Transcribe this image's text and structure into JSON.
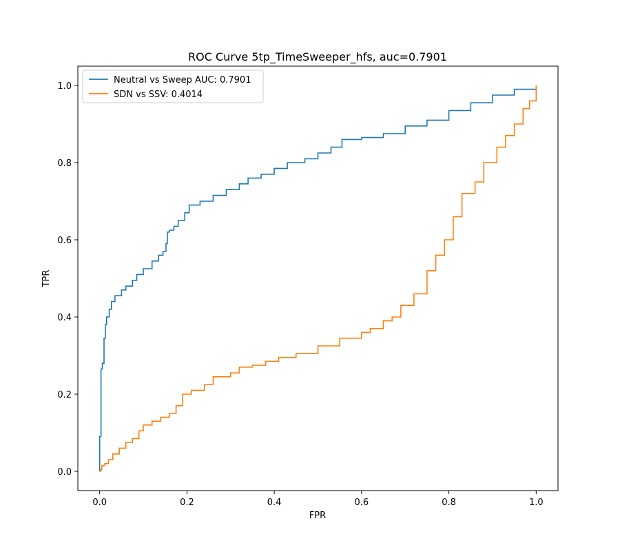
{
  "chart_data": {
    "type": "line",
    "title": "ROC Curve 5tp_TimeSweeper_hfs, auc=0.7901",
    "xlabel": "FPR",
    "ylabel": "TPR",
    "xlim": [
      -0.05,
      1.05
    ],
    "ylim": [
      -0.05,
      1.05
    ],
    "xticks": [
      0.0,
      0.2,
      0.4,
      0.6,
      0.8,
      1.0
    ],
    "yticks": [
      0.0,
      0.2,
      0.4,
      0.6,
      0.8,
      1.0
    ],
    "xtick_labels": [
      "0.0",
      "0.2",
      "0.4",
      "0.6",
      "0.8",
      "1.0"
    ],
    "ytick_labels": [
      "0.0",
      "0.2",
      "0.4",
      "0.6",
      "0.8",
      "1.0"
    ],
    "grid": false,
    "legend_position": "top-left",
    "series": [
      {
        "name": "Neutral vs Sweep AUC: 0.7901",
        "color": "#1f77b4",
        "points": [
          [
            0.0,
            0.0
          ],
          [
            0.0,
            0.09
          ],
          [
            0.003,
            0.09
          ],
          [
            0.003,
            0.265
          ],
          [
            0.006,
            0.28
          ],
          [
            0.01,
            0.345
          ],
          [
            0.013,
            0.38
          ],
          [
            0.016,
            0.4
          ],
          [
            0.022,
            0.42
          ],
          [
            0.027,
            0.44
          ],
          [
            0.035,
            0.455
          ],
          [
            0.05,
            0.47
          ],
          [
            0.06,
            0.48
          ],
          [
            0.075,
            0.495
          ],
          [
            0.085,
            0.51
          ],
          [
            0.1,
            0.525
          ],
          [
            0.12,
            0.545
          ],
          [
            0.135,
            0.56
          ],
          [
            0.145,
            0.57
          ],
          [
            0.152,
            0.59
          ],
          [
            0.155,
            0.62
          ],
          [
            0.16,
            0.625
          ],
          [
            0.17,
            0.635
          ],
          [
            0.18,
            0.65
          ],
          [
            0.195,
            0.67
          ],
          [
            0.205,
            0.69
          ],
          [
            0.23,
            0.7
          ],
          [
            0.26,
            0.715
          ],
          [
            0.29,
            0.73
          ],
          [
            0.32,
            0.745
          ],
          [
            0.34,
            0.76
          ],
          [
            0.37,
            0.77
          ],
          [
            0.4,
            0.785
          ],
          [
            0.43,
            0.8
          ],
          [
            0.47,
            0.81
          ],
          [
            0.5,
            0.825
          ],
          [
            0.53,
            0.84
          ],
          [
            0.555,
            0.86
          ],
          [
            0.6,
            0.865
          ],
          [
            0.65,
            0.875
          ],
          [
            0.7,
            0.895
          ],
          [
            0.75,
            0.91
          ],
          [
            0.8,
            0.935
          ],
          [
            0.85,
            0.955
          ],
          [
            0.9,
            0.975
          ],
          [
            0.95,
            0.99
          ],
          [
            1.0,
            1.0
          ]
        ]
      },
      {
        "name": "SDN vs SSV: 0.4014",
        "color": "#ff7f0e",
        "points": [
          [
            0.0,
            0.0
          ],
          [
            0.003,
            0.005
          ],
          [
            0.005,
            0.015
          ],
          [
            0.012,
            0.02
          ],
          [
            0.02,
            0.03
          ],
          [
            0.03,
            0.045
          ],
          [
            0.045,
            0.06
          ],
          [
            0.06,
            0.075
          ],
          [
            0.075,
            0.085
          ],
          [
            0.09,
            0.105
          ],
          [
            0.1,
            0.12
          ],
          [
            0.12,
            0.13
          ],
          [
            0.14,
            0.14
          ],
          [
            0.16,
            0.15
          ],
          [
            0.175,
            0.17
          ],
          [
            0.19,
            0.2
          ],
          [
            0.21,
            0.21
          ],
          [
            0.24,
            0.225
          ],
          [
            0.26,
            0.245
          ],
          [
            0.3,
            0.255
          ],
          [
            0.32,
            0.27
          ],
          [
            0.35,
            0.275
          ],
          [
            0.38,
            0.285
          ],
          [
            0.41,
            0.295
          ],
          [
            0.45,
            0.305
          ],
          [
            0.5,
            0.325
          ],
          [
            0.55,
            0.345
          ],
          [
            0.6,
            0.36
          ],
          [
            0.62,
            0.37
          ],
          [
            0.65,
            0.39
          ],
          [
            0.67,
            0.4
          ],
          [
            0.69,
            0.43
          ],
          [
            0.72,
            0.46
          ],
          [
            0.75,
            0.52
          ],
          [
            0.77,
            0.56
          ],
          [
            0.79,
            0.6
          ],
          [
            0.81,
            0.66
          ],
          [
            0.83,
            0.72
          ],
          [
            0.86,
            0.75
          ],
          [
            0.88,
            0.8
          ],
          [
            0.91,
            0.84
          ],
          [
            0.93,
            0.87
          ],
          [
            0.95,
            0.9
          ],
          [
            0.97,
            0.94
          ],
          [
            0.985,
            0.96
          ],
          [
            1.0,
            1.0
          ]
        ]
      }
    ]
  }
}
